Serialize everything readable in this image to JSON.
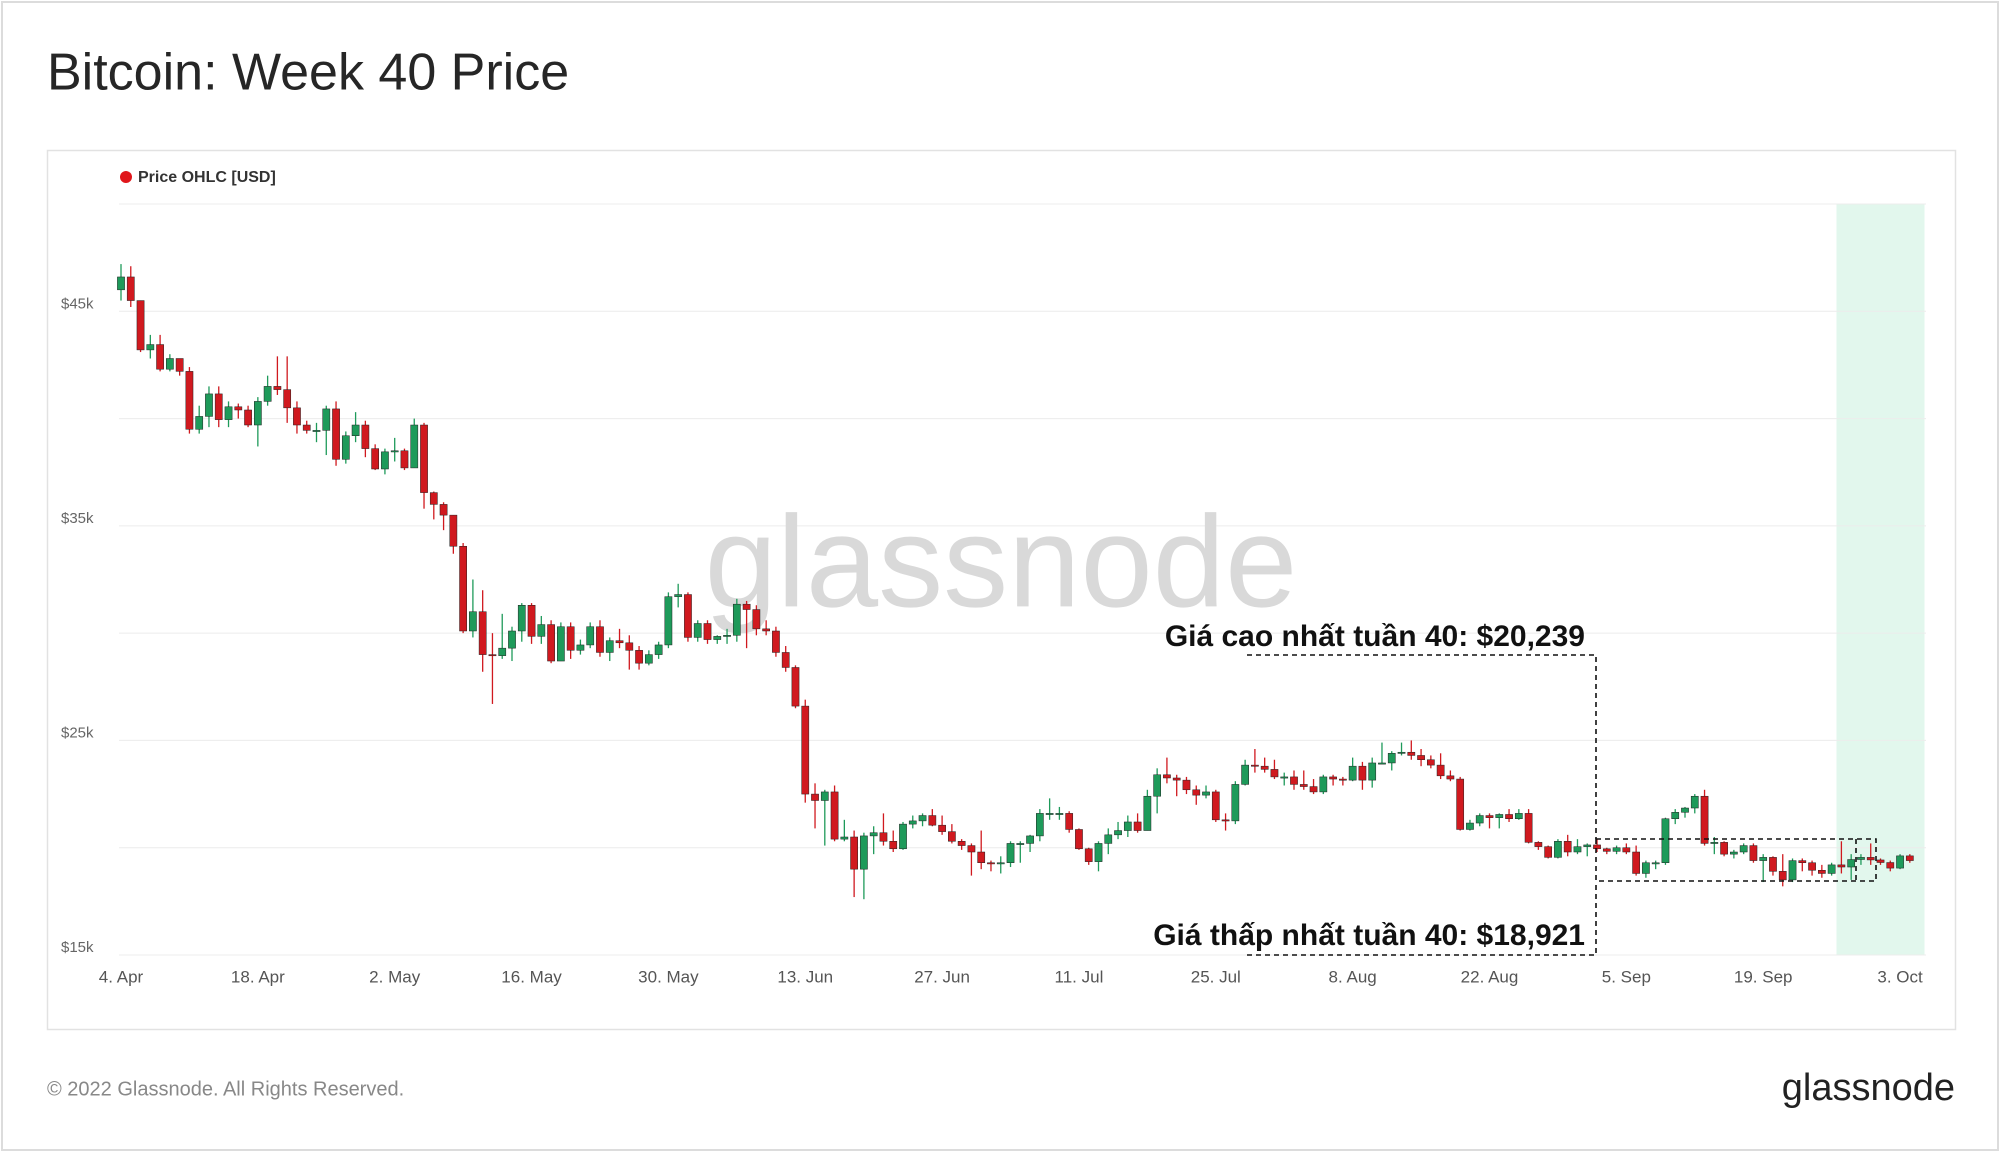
{
  "chart_data": {
    "type": "candlestick",
    "title": "Bitcoin: Week 40 Price",
    "watermark": "glassnode",
    "footer": "© 2022 Glassnode. All Rights Reserved.",
    "brand": "glassnode",
    "annotations": [
      "Giá cao nhất tuần 40: $20,239",
      "Giá thấp nhất tuần 40: $18,921"
    ],
    "legend": "top-left",
    "grid": true,
    "ylim": [
      15000,
      50000
    ],
    "yticks": [
      {
        "value": 15000,
        "label": "$15k"
      },
      {
        "value": 25000,
        "label": "$25k"
      },
      {
        "value": 35000,
        "label": "$35k"
      },
      {
        "value": 45000,
        "label": "$45k"
      }
    ],
    "ygrid": [
      20000,
      30000,
      40000,
      50000
    ],
    "highlight": {
      "start": 176,
      "end": 183,
      "color": "#e2f7ed"
    },
    "categories": [
      "4. Apr",
      null,
      null,
      null,
      null,
      null,
      null,
      null,
      null,
      null,
      null,
      null,
      null,
      null,
      "18. Apr",
      null,
      null,
      null,
      null,
      null,
      null,
      null,
      null,
      null,
      null,
      null,
      null,
      null,
      "2. May",
      null,
      null,
      null,
      null,
      null,
      null,
      null,
      null,
      null,
      null,
      null,
      null,
      null,
      "16. May",
      null,
      null,
      null,
      null,
      null,
      null,
      null,
      null,
      null,
      null,
      null,
      null,
      null,
      "30. May",
      null,
      null,
      null,
      null,
      null,
      null,
      null,
      null,
      null,
      null,
      null,
      null,
      null,
      "13. Jun",
      null,
      null,
      null,
      null,
      null,
      null,
      null,
      null,
      null,
      null,
      null,
      null,
      null,
      "27. Jun",
      null,
      null,
      null,
      null,
      null,
      null,
      null,
      null,
      null,
      null,
      null,
      null,
      null,
      "11. Jul",
      null,
      null,
      null,
      null,
      null,
      null,
      null,
      null,
      null,
      null,
      null,
      null,
      null,
      "25. Jul",
      null,
      null,
      null,
      null,
      null,
      null,
      null,
      null,
      null,
      null,
      null,
      null,
      null,
      "8. Aug",
      null,
      null,
      null,
      null,
      null,
      null,
      null,
      null,
      null,
      null,
      null,
      null,
      null,
      "22. Aug",
      null,
      null,
      null,
      null,
      null,
      null,
      null,
      null,
      null,
      null,
      null,
      null,
      null,
      "5. Sep",
      null,
      null,
      null,
      null,
      null,
      null,
      null,
      null,
      null,
      null,
      null,
      null,
      null,
      "19. Sep",
      null,
      null,
      null,
      null,
      null,
      null,
      null,
      null,
      null,
      null,
      null,
      null,
      null,
      "3. Oct",
      null
    ],
    "series": [
      {
        "name": "Price OHLC [USD]",
        "color": "#e0161b",
        "up_color": "#1e9a5a",
        "down_color": "#d0191f",
        "open": [
          46000,
          46600,
          45500,
          43200,
          43450,
          42300,
          42800,
          42200,
          39500,
          40100,
          41150,
          39950,
          40550,
          40400,
          39700,
          40800,
          41500,
          41350,
          40500,
          39700,
          39450,
          39450,
          40450,
          38100,
          39200,
          39700,
          38600,
          37650,
          38450,
          38500,
          37700,
          39700,
          36550,
          36000,
          35500,
          34050,
          30100,
          31000,
          29000,
          28950,
          29300,
          30100,
          31300,
          29850,
          30400,
          28700,
          30300,
          29200,
          29450,
          30300,
          29100,
          29650,
          29550,
          29200,
          28600,
          29000,
          29450,
          31700,
          31800,
          29800,
          30450,
          29700,
          29850,
          29900,
          31350,
          31100,
          30200,
          30100,
          29100,
          28400,
          26600,
          22500,
          22200,
          22600,
          20400,
          20500,
          19000,
          20550,
          20700,
          20300,
          19950,
          21100,
          21250,
          21500,
          21050,
          20750,
          20300,
          20100,
          19800,
          19300,
          19250,
          19300,
          20200,
          20200,
          20550,
          21600,
          21600,
          21600,
          20850,
          19950,
          19350,
          20200,
          20600,
          20800,
          21200,
          20800,
          22400,
          23400,
          23250,
          23150,
          22700,
          22450,
          22600,
          21300,
          21250,
          22950,
          23850,
          23800,
          23650,
          23300,
          23300,
          22950,
          22850,
          22600,
          23300,
          23200,
          23150,
          23800,
          23150,
          23950,
          23950,
          24400,
          24450,
          24300,
          24100,
          23850,
          23350,
          23200,
          20850,
          21150,
          21500,
          21400,
          21550,
          21350,
          21600,
          20250,
          20050,
          19550,
          20300,
          19800,
          20050,
          20130,
          19950,
          19830,
          20000,
          19800,
          18800,
          19300,
          19300,
          21350,
          21650,
          21850,
          22400,
          20200,
          20250,
          19700,
          19800,
          20100,
          19400,
          19550,
          18900,
          18500,
          19400,
          19300,
          18950,
          18800,
          19200,
          19100,
          19450,
          19550,
          19430,
          19310,
          19050,
          19620
        ],
        "high": [
          47200,
          47100,
          45500,
          43900,
          43900,
          43000,
          42800,
          42400,
          40600,
          41500,
          41500,
          40800,
          40700,
          40600,
          41000,
          42000,
          42900,
          42900,
          40800,
          39900,
          39800,
          40600,
          40800,
          39400,
          40300,
          39900,
          38800,
          38600,
          39100,
          38600,
          40000,
          39800,
          36600,
          36100,
          35500,
          34200,
          32500,
          32000,
          30000,
          30900,
          30300,
          31400,
          31400,
          30800,
          30600,
          30500,
          30500,
          29700,
          30500,
          30600,
          29800,
          30200,
          29900,
          29400,
          29200,
          29600,
          31900,
          32300,
          31900,
          30600,
          30600,
          29900,
          30200,
          31600,
          31500,
          31300,
          30600,
          30300,
          29400,
          28500,
          26900,
          23000,
          22700,
          22900,
          21300,
          20800,
          20700,
          21000,
          21600,
          20800,
          21200,
          21500,
          21600,
          21800,
          21500,
          21100,
          20400,
          20200,
          20800,
          19400,
          19600,
          20300,
          20300,
          20600,
          21800,
          22300,
          21900,
          21700,
          20900,
          20000,
          20300,
          20900,
          21200,
          21500,
          21600,
          22700,
          23700,
          24200,
          23400,
          23300,
          22900,
          22900,
          22700,
          21600,
          23100,
          24100,
          24600,
          24200,
          24100,
          23500,
          23600,
          23600,
          23200,
          23400,
          23400,
          23300,
          24200,
          24000,
          24200,
          24900,
          24500,
          24900,
          25000,
          24600,
          24300,
          24400,
          23600,
          23300,
          21300,
          21600,
          21600,
          21600,
          21800,
          21800,
          21800,
          20300,
          20100,
          20400,
          20600,
          20400,
          20200,
          20400,
          20000,
          20100,
          20200,
          20100,
          19400,
          19400,
          21400,
          21800,
          21900,
          22500,
          22700,
          20500,
          20300,
          19900,
          20200,
          20200,
          19700,
          19600,
          19700,
          19500,
          19500,
          19400,
          19200,
          19300,
          20300,
          19700,
          19700,
          20200,
          19500,
          19400,
          19700,
          19700
        ],
        "low": [
          45500,
          45200,
          43100,
          42800,
          42200,
          42200,
          42000,
          39300,
          39300,
          39600,
          39600,
          39600,
          40000,
          39600,
          38700,
          40600,
          41100,
          39800,
          39300,
          39300,
          38900,
          38300,
          37800,
          37900,
          38900,
          38200,
          37600,
          37400,
          38000,
          37600,
          37700,
          35800,
          35300,
          34800,
          33700,
          30000,
          29800,
          28200,
          26700,
          28800,
          28700,
          29600,
          29500,
          29500,
          28600,
          28700,
          28800,
          29000,
          29300,
          28900,
          28700,
          29300,
          28300,
          28300,
          28500,
          28800,
          29300,
          31200,
          29600,
          29600,
          29500,
          29500,
          29500,
          29600,
          29300,
          29900,
          29900,
          28900,
          28200,
          26500,
          22100,
          20900,
          20100,
          20300,
          20300,
          17700,
          17600,
          19700,
          20100,
          19800,
          19900,
          20900,
          21000,
          21000,
          20600,
          20200,
          19900,
          18700,
          19000,
          18900,
          18800,
          19100,
          19300,
          19800,
          20300,
          21300,
          21300,
          20700,
          19900,
          19200,
          18900,
          19700,
          20400,
          20500,
          20700,
          20800,
          21600,
          23000,
          22400,
          22500,
          22000,
          22300,
          21200,
          20800,
          21100,
          22900,
          23500,
          23500,
          23200,
          22900,
          22700,
          22700,
          22500,
          22500,
          22900,
          22900,
          23100,
          22700,
          22800,
          23900,
          23600,
          24300,
          24100,
          23800,
          23700,
          23200,
          23100,
          20800,
          20800,
          21000,
          20900,
          20900,
          21200,
          21300,
          20200,
          19900,
          19500,
          19500,
          19600,
          19700,
          19600,
          19800,
          19700,
          19700,
          19700,
          18700,
          18600,
          19000,
          19200,
          21100,
          21400,
          21600,
          20100,
          19700,
          19600,
          19500,
          19700,
          19300,
          18400,
          18700,
          18200,
          18400,
          18900,
          18700,
          18600,
          18700,
          18800,
          18500,
          19200,
          19200,
          19200,
          18900,
          19000,
          19300
        ],
        "close": [
          46600,
          45500,
          43200,
          43450,
          42300,
          42800,
          42200,
          39500,
          40100,
          41150,
          39950,
          40550,
          40400,
          39700,
          40800,
          41500,
          41350,
          40500,
          39700,
          39450,
          39450,
          40450,
          38100,
          39200,
          39700,
          38600,
          37650,
          38450,
          38500,
          37700,
          39700,
          36550,
          36000,
          35500,
          34050,
          30100,
          31000,
          29000,
          28950,
          29300,
          30100,
          31300,
          29850,
          30400,
          28700,
          30300,
          29200,
          29450,
          30300,
          29100,
          29650,
          29550,
          29200,
          28600,
          29000,
          29450,
          31700,
          31800,
          29800,
          30450,
          29700,
          29850,
          29900,
          31350,
          31100,
          30200,
          30100,
          29100,
          28400,
          26600,
          22500,
          22200,
          22600,
          20400,
          20500,
          19000,
          20550,
          20700,
          20300,
          19950,
          21100,
          21250,
          21500,
          21050,
          20750,
          20300,
          20100,
          19800,
          19300,
          19250,
          19300,
          20200,
          20200,
          20550,
          21600,
          21600,
          21600,
          20850,
          19950,
          19350,
          20200,
          20600,
          20800,
          21200,
          20800,
          22400,
          23400,
          23250,
          23150,
          22700,
          22450,
          22600,
          21300,
          21250,
          22950,
          23850,
          23800,
          23650,
          23300,
          23300,
          22950,
          22850,
          22600,
          23300,
          23200,
          23150,
          23800,
          23150,
          23950,
          23950,
          24400,
          24450,
          24300,
          24100,
          23850,
          23350,
          23200,
          20850,
          21150,
          21500,
          21400,
          21550,
          21350,
          21600,
          20250,
          20050,
          19550,
          20300,
          19800,
          20050,
          20130,
          19950,
          19830,
          20000,
          19800,
          18800,
          19300,
          19300,
          21350,
          21650,
          21850,
          22400,
          20200,
          20250,
          19700,
          19800,
          20100,
          19400,
          19550,
          18900,
          18500,
          19400,
          19300,
          18950,
          18800,
          19200,
          19100,
          19450,
          19550,
          19430,
          19310,
          19050,
          19620,
          19400
        ]
      }
    ]
  }
}
